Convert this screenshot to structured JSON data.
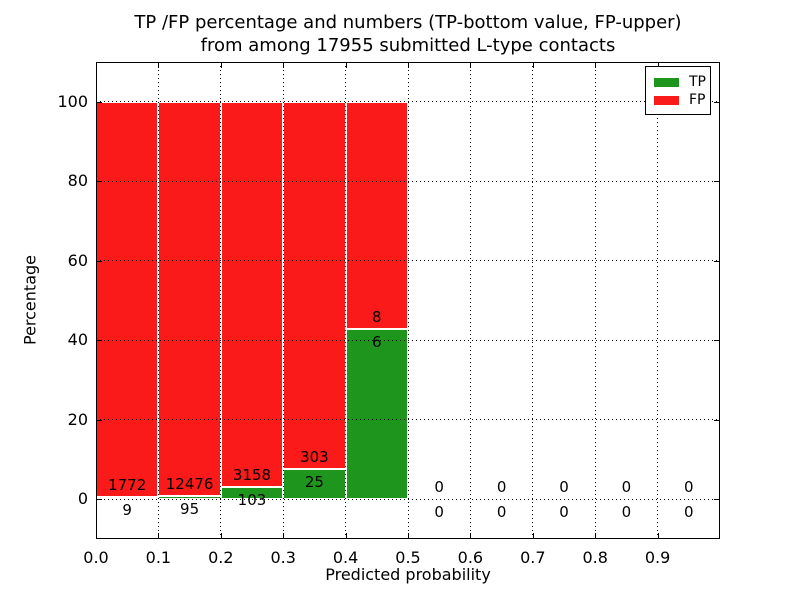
{
  "title_line1": "TP /FP percentage and numbers (TP-bottom value, FP-upper)",
  "title_line2": "from among 17955 submitted L-type contacts",
  "colors": {
    "tp_green": "#1e961e",
    "fp_red": "#fa1a1a",
    "grid": "#000000",
    "background": "#ffffff",
    "bar_edge": "#ffffff"
  },
  "chart_data": {
    "type": "bar",
    "stacked": true,
    "title": "TP /FP percentage and numbers (TP-bottom value, FP-upper) from among 17955 submitted L-type contacts",
    "xlabel": "Predicted probability",
    "ylabel": "Percentage",
    "xlim": [
      0.0,
      1.0
    ],
    "ylim": [
      -10,
      110
    ],
    "bin_width": 0.1,
    "grid": true,
    "legend_position": "upper right",
    "xticks": [
      "0.0",
      "0.1",
      "0.2",
      "0.3",
      "0.4",
      "0.5",
      "0.6",
      "0.7",
      "0.8",
      "0.9"
    ],
    "xtick_values": [
      0.0,
      0.1,
      0.2,
      0.3,
      0.4,
      0.5,
      0.6,
      0.7,
      0.8,
      0.9
    ],
    "yticks": [
      "0",
      "20",
      "40",
      "60",
      "80",
      "100"
    ],
    "ytick_values": [
      0,
      20,
      40,
      60,
      80,
      100
    ],
    "series": [
      {
        "name": "TP",
        "color": "#1e961e",
        "counts": [
          9,
          95,
          103,
          25,
          6,
          0,
          0,
          0,
          0,
          0
        ]
      },
      {
        "name": "FP",
        "color": "#fa1a1a",
        "counts": [
          1772,
          12476,
          3158,
          303,
          8,
          0,
          0,
          0,
          0,
          0
        ]
      }
    ],
    "bins": [
      {
        "x0": 0.0,
        "x1": 0.1,
        "tp": 9,
        "fp": 1772,
        "tp_pct": 0.51,
        "fp_pct": 99.49
      },
      {
        "x0": 0.1,
        "x1": 0.2,
        "tp": 95,
        "fp": 12476,
        "tp_pct": 0.76,
        "fp_pct": 99.24
      },
      {
        "x0": 0.2,
        "x1": 0.3,
        "tp": 103,
        "fp": 3158,
        "tp_pct": 3.16,
        "fp_pct": 96.84
      },
      {
        "x0": 0.3,
        "x1": 0.4,
        "tp": 25,
        "fp": 303,
        "tp_pct": 7.62,
        "fp_pct": 92.38
      },
      {
        "x0": 0.4,
        "x1": 0.5,
        "tp": 6,
        "fp": 8,
        "tp_pct": 42.86,
        "fp_pct": 57.14
      },
      {
        "x0": 0.5,
        "x1": 0.6,
        "tp": 0,
        "fp": 0,
        "tp_pct": 0,
        "fp_pct": 0
      },
      {
        "x0": 0.6,
        "x1": 0.7,
        "tp": 0,
        "fp": 0,
        "tp_pct": 0,
        "fp_pct": 0
      },
      {
        "x0": 0.7,
        "x1": 0.8,
        "tp": 0,
        "fp": 0,
        "tp_pct": 0,
        "fp_pct": 0
      },
      {
        "x0": 0.8,
        "x1": 0.9,
        "tp": 0,
        "fp": 0,
        "tp_pct": 0,
        "fp_pct": 0
      },
      {
        "x0": 0.9,
        "x1": 1.0,
        "tp": 0,
        "fp": 0,
        "tp_pct": 0,
        "fp_pct": 0
      }
    ]
  }
}
